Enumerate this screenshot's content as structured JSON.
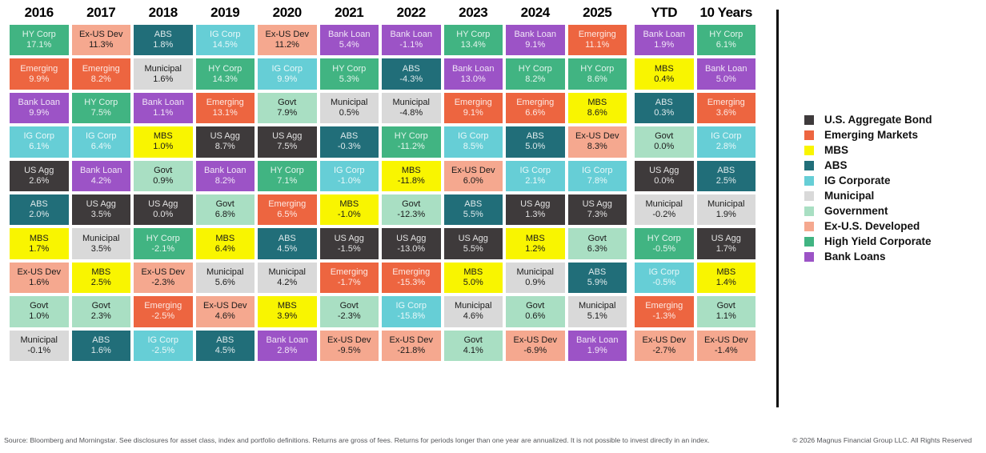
{
  "assets": {
    "us_agg": {
      "short": "US Agg",
      "full": "U.S. Aggregate Bond",
      "color": "#3E3A3B",
      "text": "light"
    },
    "emerging": {
      "short": "Emerging",
      "full": "Emerging Markets",
      "color": "#ED6540",
      "text": "light"
    },
    "mbs": {
      "short": "MBS",
      "full": "MBS",
      "color": "#F9F500",
      "text": "dark"
    },
    "abs": {
      "short": "ABS",
      "full": "ABS",
      "color": "#216E79",
      "text": "light"
    },
    "ig_corp": {
      "short": "IG Corp",
      "full": "IG Corporate",
      "color": "#66CED6",
      "text": "light"
    },
    "municipal": {
      "short": "Municipal",
      "full": "Municipal",
      "color": "#D9D9D9",
      "text": "dark"
    },
    "govt": {
      "short": "Govt",
      "full": "Government",
      "color": "#A9DFC3",
      "text": "dark"
    },
    "ex_us_dev": {
      "short": "Ex-US Dev",
      "full": "Ex-U.S. Developed",
      "color": "#F5A88F",
      "text": "dark"
    },
    "hy_corp": {
      "short": "HY Corp",
      "full": "High Yield Corporate",
      "color": "#41B482",
      "text": "light"
    },
    "bank_loan": {
      "short": "Bank Loan",
      "full": "Bank Loans",
      "color": "#9C53C6",
      "text": "light"
    }
  },
  "legend_order": [
    "us_agg",
    "emerging",
    "mbs",
    "abs",
    "ig_corp",
    "municipal",
    "govt",
    "ex_us_dev",
    "hy_corp",
    "bank_loan"
  ],
  "chart_data": {
    "type": "table",
    "unit": "%",
    "description": "Asset class total returns ranked best-to-worst per period",
    "columns": [
      {
        "label": "2016",
        "items": [
          {
            "asset": "hy_corp",
            "value": 17.1
          },
          {
            "asset": "emerging",
            "value": 9.9
          },
          {
            "asset": "bank_loan",
            "value": 9.9
          },
          {
            "asset": "ig_corp",
            "value": 6.1
          },
          {
            "asset": "us_agg",
            "value": 2.6
          },
          {
            "asset": "abs",
            "value": 2.0
          },
          {
            "asset": "mbs",
            "value": 1.7
          },
          {
            "asset": "ex_us_dev",
            "value": 1.6
          },
          {
            "asset": "govt",
            "value": 1.0
          },
          {
            "asset": "municipal",
            "value": -0.1
          }
        ]
      },
      {
        "label": "2017",
        "items": [
          {
            "asset": "ex_us_dev",
            "value": 11.3
          },
          {
            "asset": "emerging",
            "value": 8.2
          },
          {
            "asset": "hy_corp",
            "value": 7.5
          },
          {
            "asset": "ig_corp",
            "value": 6.4
          },
          {
            "asset": "bank_loan",
            "value": 4.2
          },
          {
            "asset": "us_agg",
            "value": 3.5
          },
          {
            "asset": "municipal",
            "value": 3.5
          },
          {
            "asset": "mbs",
            "value": 2.5
          },
          {
            "asset": "govt",
            "value": 2.3
          },
          {
            "asset": "abs",
            "value": 1.6
          }
        ]
      },
      {
        "label": "2018",
        "items": [
          {
            "asset": "abs",
            "value": 1.8
          },
          {
            "asset": "municipal",
            "value": 1.6
          },
          {
            "asset": "bank_loan",
            "value": 1.1
          },
          {
            "asset": "mbs",
            "value": 1.0
          },
          {
            "asset": "govt",
            "value": 0.9
          },
          {
            "asset": "us_agg",
            "value": 0.0
          },
          {
            "asset": "hy_corp",
            "value": -2.1
          },
          {
            "asset": "ex_us_dev",
            "value": -2.3
          },
          {
            "asset": "emerging",
            "value": -2.5
          },
          {
            "asset": "ig_corp",
            "value": -2.5
          }
        ]
      },
      {
        "label": "2019",
        "items": [
          {
            "asset": "ig_corp",
            "value": 14.5
          },
          {
            "asset": "hy_corp",
            "value": 14.3
          },
          {
            "asset": "emerging",
            "value": 13.1
          },
          {
            "asset": "us_agg",
            "value": 8.7
          },
          {
            "asset": "bank_loan",
            "value": 8.2
          },
          {
            "asset": "govt",
            "value": 6.8
          },
          {
            "asset": "mbs",
            "value": 6.4
          },
          {
            "asset": "municipal",
            "value": 5.6
          },
          {
            "asset": "ex_us_dev",
            "value": 4.6
          },
          {
            "asset": "abs",
            "value": 4.5
          }
        ]
      },
      {
        "label": "2020",
        "items": [
          {
            "asset": "ex_us_dev",
            "value": 11.2
          },
          {
            "asset": "ig_corp",
            "value": 9.9
          },
          {
            "asset": "govt",
            "value": 7.9
          },
          {
            "asset": "us_agg",
            "value": 7.5
          },
          {
            "asset": "hy_corp",
            "value": 7.1
          },
          {
            "asset": "emerging",
            "value": 6.5
          },
          {
            "asset": "abs",
            "value": 4.5
          },
          {
            "asset": "municipal",
            "value": 4.2
          },
          {
            "asset": "mbs",
            "value": 3.9
          },
          {
            "asset": "bank_loan",
            "value": 2.8
          }
        ]
      },
      {
        "label": "2021",
        "items": [
          {
            "asset": "bank_loan",
            "value": 5.4
          },
          {
            "asset": "hy_corp",
            "value": 5.3
          },
          {
            "asset": "municipal",
            "value": 0.5
          },
          {
            "asset": "abs",
            "value": -0.3
          },
          {
            "asset": "ig_corp",
            "value": -1.0
          },
          {
            "asset": "mbs",
            "value": -1.0
          },
          {
            "asset": "us_agg",
            "value": -1.5
          },
          {
            "asset": "emerging",
            "value": -1.7
          },
          {
            "asset": "govt",
            "value": -2.3
          },
          {
            "asset": "ex_us_dev",
            "value": -9.5
          }
        ]
      },
      {
        "label": "2022",
        "items": [
          {
            "asset": "bank_loan",
            "value": -1.1
          },
          {
            "asset": "abs",
            "value": -4.3
          },
          {
            "asset": "municipal",
            "value": -4.8
          },
          {
            "asset": "hy_corp",
            "value": -11.2
          },
          {
            "asset": "mbs",
            "value": -11.8
          },
          {
            "asset": "govt",
            "value": -12.3
          },
          {
            "asset": "us_agg",
            "value": -13.0
          },
          {
            "asset": "emerging",
            "value": -15.3
          },
          {
            "asset": "ig_corp",
            "value": -15.8
          },
          {
            "asset": "ex_us_dev",
            "value": -21.8
          }
        ]
      },
      {
        "label": "2023",
        "items": [
          {
            "asset": "hy_corp",
            "value": 13.4
          },
          {
            "asset": "bank_loan",
            "value": 13.0
          },
          {
            "asset": "emerging",
            "value": 9.1
          },
          {
            "asset": "ig_corp",
            "value": 8.5
          },
          {
            "asset": "ex_us_dev",
            "value": 6.0
          },
          {
            "asset": "abs",
            "value": 5.5
          },
          {
            "asset": "us_agg",
            "value": 5.5
          },
          {
            "asset": "mbs",
            "value": 5.0
          },
          {
            "asset": "municipal",
            "value": 4.6
          },
          {
            "asset": "govt",
            "value": 4.1
          }
        ]
      },
      {
        "label": "2024",
        "items": [
          {
            "asset": "bank_loan",
            "value": 9.1
          },
          {
            "asset": "hy_corp",
            "value": 8.2
          },
          {
            "asset": "emerging",
            "value": 6.6
          },
          {
            "asset": "abs",
            "value": 5.0
          },
          {
            "asset": "ig_corp",
            "value": 2.1
          },
          {
            "asset": "us_agg",
            "value": 1.3
          },
          {
            "asset": "mbs",
            "value": 1.2
          },
          {
            "asset": "municipal",
            "value": 0.9
          },
          {
            "asset": "govt",
            "value": 0.6
          },
          {
            "asset": "ex_us_dev",
            "value": -6.9
          }
        ]
      },
      {
        "label": "2025",
        "items": [
          {
            "asset": "emerging",
            "value": 11.1
          },
          {
            "asset": "hy_corp",
            "value": 8.6
          },
          {
            "asset": "mbs",
            "value": 8.6
          },
          {
            "asset": "ex_us_dev",
            "value": 8.3
          },
          {
            "asset": "ig_corp",
            "value": 7.8
          },
          {
            "asset": "us_agg",
            "value": 7.3
          },
          {
            "asset": "govt",
            "value": 6.3
          },
          {
            "asset": "abs",
            "value": 5.9
          },
          {
            "asset": "municipal",
            "value": 5.1
          },
          {
            "asset": "bank_loan",
            "value": 1.9
          }
        ]
      },
      {
        "label": "YTD",
        "items": [
          {
            "asset": "bank_loan",
            "value": 1.9
          },
          {
            "asset": "mbs",
            "value": 0.4
          },
          {
            "asset": "abs",
            "value": 0.3
          },
          {
            "asset": "govt",
            "value": 0.0
          },
          {
            "asset": "us_agg",
            "value": 0.0
          },
          {
            "asset": "municipal",
            "value": -0.2
          },
          {
            "asset": "hy_corp",
            "value": -0.5
          },
          {
            "asset": "ig_corp",
            "value": -0.5
          },
          {
            "asset": "emerging",
            "value": -1.3
          },
          {
            "asset": "ex_us_dev",
            "value": -2.7
          }
        ]
      },
      {
        "label": "10 Years",
        "items": [
          {
            "asset": "hy_corp",
            "value": 6.1
          },
          {
            "asset": "bank_loan",
            "value": 5.0
          },
          {
            "asset": "emerging",
            "value": 3.6
          },
          {
            "asset": "ig_corp",
            "value": 2.8
          },
          {
            "asset": "abs",
            "value": 2.5
          },
          {
            "asset": "municipal",
            "value": 1.9
          },
          {
            "asset": "us_agg",
            "value": 1.7
          },
          {
            "asset": "mbs",
            "value": 1.4
          },
          {
            "asset": "govt",
            "value": 1.1
          },
          {
            "asset": "ex_us_dev",
            "value": -1.4
          }
        ]
      }
    ]
  },
  "footer": {
    "source": "Source: Bloomberg and Morningstar. See disclosures for asset class, index and portfolio definitions. Returns are gross of fees. Returns for periods longer than one year are annualized. It is not possible to invest directly in an index.",
    "copyright": "© 2026 Magnus Financial Group LLC. All Rights Reserved"
  }
}
